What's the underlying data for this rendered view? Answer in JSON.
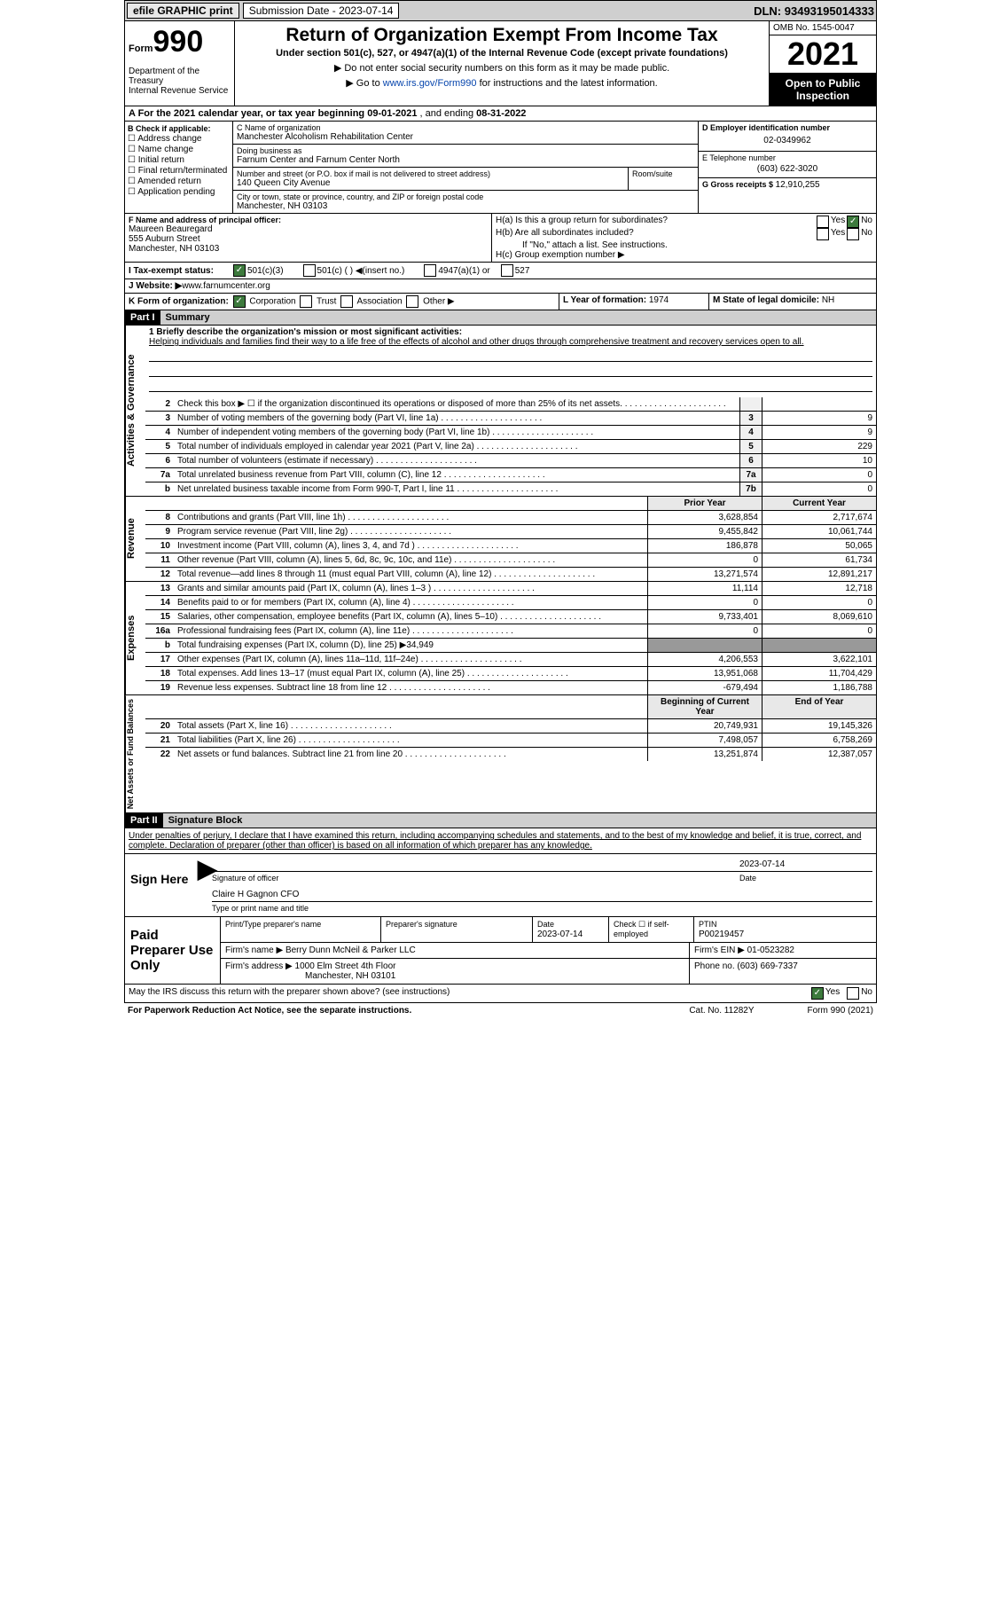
{
  "topbar": {
    "efile": "efile GRAPHIC print",
    "subdate_label": "Submission Date - ",
    "subdate": "2023-07-14",
    "dln_label": "DLN: ",
    "dln": "93493195014333"
  },
  "header": {
    "form_word": "Form",
    "form_num": "990",
    "dept": "Department of the Treasury\nInternal Revenue Service",
    "title": "Return of Organization Exempt From Income Tax",
    "sub": "Under section 501(c), 527, or 4947(a)(1) of the Internal Revenue Code (except private foundations)",
    "note1": "▶ Do not enter social security numbers on this form as it may be made public.",
    "note2_pre": "▶ Go to ",
    "note2_link": "www.irs.gov/Form990",
    "note2_post": " for instructions and the latest information.",
    "omb": "OMB No. 1545-0047",
    "year": "2021",
    "inspect": "Open to Public Inspection"
  },
  "A": {
    "text": "A For the 2021 calendar year, or tax year beginning ",
    "begin": "09-01-2021",
    "mid": " , and ending ",
    "end": "08-31-2022"
  },
  "B": {
    "label": "B Check if applicable:",
    "items": [
      "Address change",
      "Name change",
      "Initial return",
      "Final return/terminated",
      "Amended return",
      "Application pending"
    ]
  },
  "C": {
    "name_label": "C Name of organization",
    "name": "Manchester Alcoholism Rehabilitation Center",
    "dba_label": "Doing business as",
    "dba": "Farnum Center and Farnum Center North",
    "street_label": "Number and street (or P.O. box if mail is not delivered to street address)",
    "room_label": "Room/suite",
    "street": "140 Queen City Avenue",
    "city_label": "City or town, state or province, country, and ZIP or foreign postal code",
    "city": "Manchester, NH  03103"
  },
  "D": {
    "label": "D Employer identification number",
    "val": "02-0349962"
  },
  "E": {
    "label": "E Telephone number",
    "val": "(603) 622-3020"
  },
  "G": {
    "label": "G Gross receipts $ ",
    "val": "12,910,255"
  },
  "F": {
    "label": "F Name and address of principal officer:",
    "name": "Maureen Beauregard",
    "addr1": "555 Auburn Street",
    "addr2": "Manchester, NH  03103"
  },
  "H": {
    "a": "H(a)  Is this a group return for subordinates?",
    "b": "H(b)  Are all subordinates included?",
    "no_note": "If \"No,\" attach a list. See instructions.",
    "c": "H(c)  Group exemption number ▶",
    "yes": "Yes",
    "no": "No"
  },
  "I": {
    "label": "I  Tax-exempt status:",
    "o1": "501(c)(3)",
    "o2": "501(c) (  ) ◀(insert no.)",
    "o3": "4947(a)(1) or",
    "o4": "527"
  },
  "J": {
    "label": "J  Website: ▶ ",
    "val": "www.farnumcenter.org"
  },
  "K": {
    "label": "K Form of organization:",
    "o1": "Corporation",
    "o2": "Trust",
    "o3": "Association",
    "o4": "Other ▶"
  },
  "L": {
    "label": "L Year of formation: ",
    "val": "1974"
  },
  "M": {
    "label": "M State of legal domicile: ",
    "val": "NH"
  },
  "part1": {
    "num": "Part I",
    "title": "Summary"
  },
  "mission": {
    "l1": "1   Briefly describe the organization's mission or most significant activities:",
    "text": "Helping individuals and families find their way to a life free of the effects of alcohol and other drugs through comprehensive treatment and recovery services open to all."
  },
  "sidebar": {
    "ag": "Activities & Governance",
    "rev": "Revenue",
    "exp": "Expenses",
    "net": "Net Assets or Fund Balances"
  },
  "lines_ag": [
    {
      "n": "2",
      "t": "Check this box ▶ ☐ if the organization discontinued its operations or disposed of more than 25% of its net assets.",
      "box": "",
      "v": ""
    },
    {
      "n": "3",
      "t": "Number of voting members of the governing body (Part VI, line 1a)",
      "box": "3",
      "v": "9"
    },
    {
      "n": "4",
      "t": "Number of independent voting members of the governing body (Part VI, line 1b)",
      "box": "4",
      "v": "9"
    },
    {
      "n": "5",
      "t": "Total number of individuals employed in calendar year 2021 (Part V, line 2a)",
      "box": "5",
      "v": "229"
    },
    {
      "n": "6",
      "t": "Total number of volunteers (estimate if necessary)",
      "box": "6",
      "v": "10"
    },
    {
      "n": "7a",
      "t": "Total unrelated business revenue from Part VIII, column (C), line 12",
      "box": "7a",
      "v": "0"
    },
    {
      "n": "b",
      "t": "Net unrelated business taxable income from Form 990-T, Part I, line 11",
      "box": "7b",
      "v": "0"
    }
  ],
  "col_headers": {
    "py": "Prior Year",
    "cy": "Current Year",
    "boy": "Beginning of Current Year",
    "eoy": "End of Year"
  },
  "lines_rev": [
    {
      "n": "8",
      "t": "Contributions and grants (Part VIII, line 1h)",
      "py": "3,628,854",
      "cy": "2,717,674"
    },
    {
      "n": "9",
      "t": "Program service revenue (Part VIII, line 2g)",
      "py": "9,455,842",
      "cy": "10,061,744"
    },
    {
      "n": "10",
      "t": "Investment income (Part VIII, column (A), lines 3, 4, and 7d )",
      "py": "186,878",
      "cy": "50,065"
    },
    {
      "n": "11",
      "t": "Other revenue (Part VIII, column (A), lines 5, 6d, 8c, 9c, 10c, and 11e)",
      "py": "0",
      "cy": "61,734"
    },
    {
      "n": "12",
      "t": "Total revenue—add lines 8 through 11 (must equal Part VIII, column (A), line 12)",
      "py": "13,271,574",
      "cy": "12,891,217"
    }
  ],
  "lines_exp": [
    {
      "n": "13",
      "t": "Grants and similar amounts paid (Part IX, column (A), lines 1–3 )",
      "py": "11,114",
      "cy": "12,718"
    },
    {
      "n": "14",
      "t": "Benefits paid to or for members (Part IX, column (A), line 4)",
      "py": "0",
      "cy": "0"
    },
    {
      "n": "15",
      "t": "Salaries, other compensation, employee benefits (Part IX, column (A), lines 5–10)",
      "py": "9,733,401",
      "cy": "8,069,610"
    },
    {
      "n": "16a",
      "t": "Professional fundraising fees (Part IX, column (A), line 11e)",
      "py": "0",
      "cy": "0"
    },
    {
      "n": "b",
      "t": "Total fundraising expenses (Part IX, column (D), line 25) ▶34,949",
      "gray": true
    },
    {
      "n": "17",
      "t": "Other expenses (Part IX, column (A), lines 11a–11d, 11f–24e)",
      "py": "4,206,553",
      "cy": "3,622,101"
    },
    {
      "n": "18",
      "t": "Total expenses. Add lines 13–17 (must equal Part IX, column (A), line 25)",
      "py": "13,951,068",
      "cy": "11,704,429"
    },
    {
      "n": "19",
      "t": "Revenue less expenses. Subtract line 18 from line 12",
      "py": "-679,494",
      "cy": "1,186,788"
    }
  ],
  "lines_net": [
    {
      "n": "20",
      "t": "Total assets (Part X, line 16)",
      "py": "20,749,931",
      "cy": "19,145,326"
    },
    {
      "n": "21",
      "t": "Total liabilities (Part X, line 26)",
      "py": "7,498,057",
      "cy": "6,758,269"
    },
    {
      "n": "22",
      "t": "Net assets or fund balances. Subtract line 21 from line 20",
      "py": "13,251,874",
      "cy": "12,387,057"
    }
  ],
  "part2": {
    "num": "Part II",
    "title": "Signature Block"
  },
  "penalties": "Under penalties of perjury, I declare that I have examined this return, including accompanying schedules and statements, and to the best of my knowledge and belief, it is true, correct, and complete. Declaration of preparer (other than officer) is based on all information of which preparer has any knowledge.",
  "sign": {
    "label": "Sign Here",
    "sig_label": "Signature of officer",
    "date": "2023-07-14",
    "date_label": "Date",
    "name": "Claire H Gagnon  CFO",
    "name_label": "Type or print name and title"
  },
  "prep": {
    "label": "Paid Preparer Use Only",
    "r1c1": "Print/Type preparer's name",
    "r1c2": "Preparer's signature",
    "r1c3_l": "Date",
    "r1c3": "2023-07-14",
    "r1c4": "Check ☐ if self-employed",
    "r1c5_l": "PTIN",
    "r1c5": "P00219457",
    "r2c1": "Firm's name    ▶ ",
    "r2c1v": "Berry Dunn McNeil & Parker LLC",
    "r2c2": "Firm's EIN ▶ 01-0523282",
    "r3c1": "Firm's address ▶ ",
    "r3c1v": "1000 Elm Street 4th Floor",
    "r3c1v2": "Manchester, NH  03101",
    "r3c2": "Phone no. (603) 669-7337"
  },
  "discuss": {
    "text": "May the IRS discuss this return with the preparer shown above? (see instructions)",
    "yes": "Yes",
    "no": "No"
  },
  "footer": {
    "left": "For Paperwork Reduction Act Notice, see the separate instructions.",
    "mid": "Cat. No. 11282Y",
    "right": "Form 990 (2021)"
  }
}
